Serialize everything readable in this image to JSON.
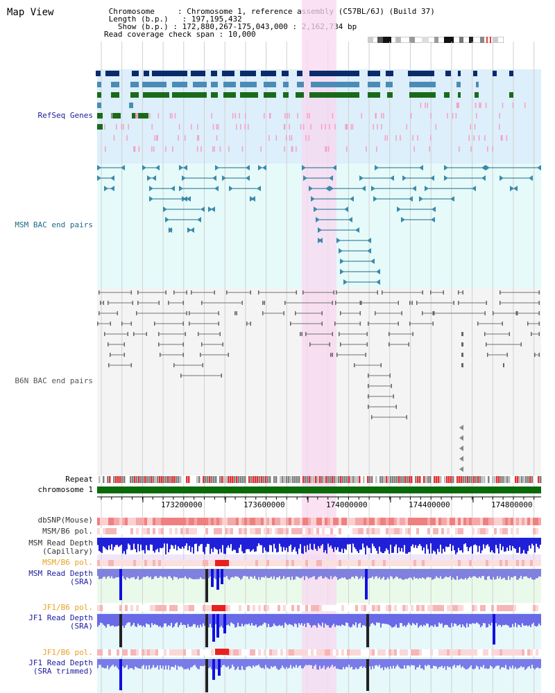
{
  "view": {
    "title": "Map View",
    "chromosome_key": "Chromosome",
    "chromosome_val": "Chromosome 1, reference assembly (C57BL/6J) (Build 37)",
    "length_key": "Length (b.p.)",
    "length_val": "197,195,432",
    "show_key": "Show (b.p.)",
    "show_val": "172,880,267-175,043,000 : 2,162,734 bp",
    "span_key": "Read coverage check span",
    "span_val": "10,000"
  },
  "tracks": {
    "refseq": "RefSeq Genes",
    "msm_bac": "MSM BAC end pairs",
    "b6n_bac": "B6N BAC end pairs",
    "repeat": "Repeat",
    "chromosome": "chromosome 1",
    "dbsnp": "dbSNP(Mouse)",
    "msm_b6_pol_1": "MSM/B6 pol.",
    "msm_depth_cap_1": "MSM Read Depth",
    "msm_depth_cap_2": "(Capillary)",
    "msm_b6_pol_2": "MSM/B6 pol.",
    "msm_depth_sra_1": "MSM Read Depth",
    "msm_depth_sra_2": "(SRA)",
    "jf1_b6_pol_1": "JF1/B6 pol.",
    "jf1_depth_sra_1": "JF1 Read Depth",
    "jf1_depth_sra_2": "(SRA)",
    "jf1_b6_pol_2": "JF1/B6 pol.",
    "jf1_depth_trim_1": "JF1 Read Depth",
    "jf1_depth_trim_2": "(SRA trimmed)"
  },
  "axis": {
    "ticks": [
      "173200000",
      "173600000",
      "174000000",
      "174400000",
      "174800000"
    ]
  },
  "colors": {
    "refseq_bg": "#ddeffa",
    "bac_bg": "#e6fafa",
    "highlight": "#f8d8f0",
    "navy": "#0a2a6a",
    "steel": "#4a8cb5",
    "green": "#1a6a1a",
    "pink": "#f4a0c8",
    "msm_line": "#1a6a8a",
    "b6n_line": "#707070",
    "chrom_bar": "#0a6a0a",
    "label_blue": "#1a1aa0",
    "label_orange": "#e8a020",
    "label_gray": "#333333"
  }
}
